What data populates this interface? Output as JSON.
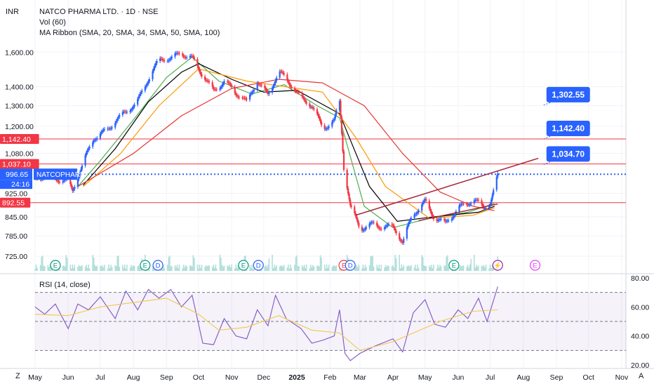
{
  "header": {
    "currency": "INR",
    "symbol_line": "NATCO PHARMA LTD. · 1D · NSE",
    "vol_line": "Vol (60)",
    "ma_line": "MA Ribbon (SMA, 20, SMA, 34, SMA, 50, SMA, 100)",
    "rsi_line": "RSI (14, close)"
  },
  "footer": {
    "left_corner": "Z",
    "right_corner": "A"
  },
  "colors": {
    "up": "#2962ff",
    "down": "#f23645",
    "ma20": "#4caf50",
    "ma34": "#000000",
    "ma50": "#ff9800",
    "ma100": "#e53935",
    "rsi": "#7e57c2",
    "rsi_ma": "#ffd54f",
    "hline": "#f23645",
    "trend": "#a52a3c",
    "accent": "#2962ff"
  },
  "chart_data": [
    {
      "type": "candlestick",
      "title": "NATCO PHARMA LTD. · 1D · NSE",
      "ylabel": "INR",
      "yscale": "log",
      "ylim": [
        700,
        1700
      ],
      "xlim": [
        "2024-05-01",
        "2025-11-05"
      ],
      "x_ticks": [
        {
          "date": "2024-05-01",
          "label": "May"
        },
        {
          "date": "2024-06-01",
          "label": "Jun"
        },
        {
          "date": "2024-07-01",
          "label": "Jul"
        },
        {
          "date": "2024-08-01",
          "label": "Aug"
        },
        {
          "date": "2024-09-01",
          "label": "Sep"
        },
        {
          "date": "2024-10-01",
          "label": "Oct"
        },
        {
          "date": "2024-11-01",
          "label": "Nov"
        },
        {
          "date": "2024-12-01",
          "label": "Dec"
        },
        {
          "date": "2025-01-01",
          "label": "2025"
        },
        {
          "date": "2025-02-01",
          "label": "Feb"
        },
        {
          "date": "2025-03-01",
          "label": "Mar"
        },
        {
          "date": "2025-04-01",
          "label": "Apr"
        },
        {
          "date": "2025-05-01",
          "label": "May"
        },
        {
          "date": "2025-06-01",
          "label": "Jun"
        },
        {
          "date": "2025-07-01",
          "label": "Jul"
        },
        {
          "date": "2025-08-01",
          "label": "Aug"
        },
        {
          "date": "2025-09-01",
          "label": "Sep"
        },
        {
          "date": "2025-10-01",
          "label": "Oct"
        },
        {
          "date": "2025-11-01",
          "label": "Nov"
        }
      ],
      "y_ticks": [
        "1,600.00",
        "1,400.00",
        "1,300.00",
        "1,200.00",
        "1,080.00",
        "925.00",
        "845.00",
        "785.00",
        "725.00"
      ],
      "price_series": [
        {
          "date": "2024-05-01",
          "close": 975
        },
        {
          "date": "2024-05-15",
          "close": 990
        },
        {
          "date": "2024-06-01",
          "close": 975
        },
        {
          "date": "2024-06-05",
          "close": 935
        },
        {
          "date": "2024-06-15",
          "close": 1030
        },
        {
          "date": "2024-06-25",
          "close": 1150
        },
        {
          "date": "2024-07-10",
          "close": 1200
        },
        {
          "date": "2024-07-25",
          "close": 1260
        },
        {
          "date": "2024-08-05",
          "close": 1330
        },
        {
          "date": "2024-08-15",
          "close": 1450
        },
        {
          "date": "2024-08-25",
          "close": 1540
        },
        {
          "date": "2024-09-05",
          "close": 1560
        },
        {
          "date": "2024-09-15",
          "close": 1610
        },
        {
          "date": "2024-09-25",
          "close": 1560
        },
        {
          "date": "2024-10-05",
          "close": 1450
        },
        {
          "date": "2024-10-15",
          "close": 1380
        },
        {
          "date": "2024-10-25",
          "close": 1440
        },
        {
          "date": "2024-11-05",
          "close": 1360
        },
        {
          "date": "2024-11-15",
          "close": 1310
        },
        {
          "date": "2024-11-25",
          "close": 1440
        },
        {
          "date": "2024-12-05",
          "close": 1360
        },
        {
          "date": "2024-12-15",
          "close": 1470
        },
        {
          "date": "2024-12-25",
          "close": 1420
        },
        {
          "date": "2025-01-05",
          "close": 1350
        },
        {
          "date": "2025-01-15",
          "close": 1300
        },
        {
          "date": "2025-01-25",
          "close": 1180
        },
        {
          "date": "2025-02-05",
          "close": 1230
        },
        {
          "date": "2025-02-10",
          "close": 1330
        },
        {
          "date": "2025-02-14",
          "close": 1030
        },
        {
          "date": "2025-02-20",
          "close": 880
        },
        {
          "date": "2025-03-01",
          "close": 800
        },
        {
          "date": "2025-03-15",
          "close": 825
        },
        {
          "date": "2025-04-01",
          "close": 810
        },
        {
          "date": "2025-04-10",
          "close": 760
        },
        {
          "date": "2025-04-20",
          "close": 860
        },
        {
          "date": "2025-05-01",
          "close": 900
        },
        {
          "date": "2025-05-10",
          "close": 835
        },
        {
          "date": "2025-05-20",
          "close": 820
        },
        {
          "date": "2025-06-01",
          "close": 880
        },
        {
          "date": "2025-06-15",
          "close": 900
        },
        {
          "date": "2025-06-25",
          "close": 870
        },
        {
          "date": "2025-07-01",
          "close": 895
        },
        {
          "date": "2025-07-08",
          "close": 996.65
        }
      ],
      "moving_averages": [
        {
          "name": "SMA 20",
          "color": "#4caf50",
          "points": [
            {
              "date": "2024-06-10",
              "value": 950
            },
            {
              "date": "2024-07-01",
              "value": 1050
            },
            {
              "date": "2024-08-01",
              "value": 1230
            },
            {
              "date": "2024-09-01",
              "value": 1450
            },
            {
              "date": "2024-09-25",
              "value": 1570
            },
            {
              "date": "2024-10-20",
              "value": 1430
            },
            {
              "date": "2024-11-20",
              "value": 1360
            },
            {
              "date": "2024-12-20",
              "value": 1410
            },
            {
              "date": "2025-01-20",
              "value": 1300
            },
            {
              "date": "2025-02-10",
              "value": 1240
            },
            {
              "date": "2025-03-05",
              "value": 880
            },
            {
              "date": "2025-04-01",
              "value": 810
            },
            {
              "date": "2025-05-05",
              "value": 840
            },
            {
              "date": "2025-06-10",
              "value": 860
            },
            {
              "date": "2025-07-05",
              "value": 890
            }
          ]
        },
        {
          "name": "SMA 34",
          "color": "#000000",
          "points": [
            {
              "date": "2024-06-15",
              "value": 955
            },
            {
              "date": "2024-07-15",
              "value": 1100
            },
            {
              "date": "2024-08-15",
              "value": 1320
            },
            {
              "date": "2024-09-15",
              "value": 1480
            },
            {
              "date": "2024-10-01",
              "value": 1530
            },
            {
              "date": "2024-11-01",
              "value": 1440
            },
            {
              "date": "2024-12-01",
              "value": 1370
            },
            {
              "date": "2025-01-01",
              "value": 1380
            },
            {
              "date": "2025-02-10",
              "value": 1260
            },
            {
              "date": "2025-03-10",
              "value": 950
            },
            {
              "date": "2025-04-05",
              "value": 830
            },
            {
              "date": "2025-05-10",
              "value": 845
            },
            {
              "date": "2025-06-20",
              "value": 860
            },
            {
              "date": "2025-07-05",
              "value": 880
            }
          ]
        },
        {
          "name": "SMA 50",
          "color": "#ff9800",
          "points": [
            {
              "date": "2024-06-15",
              "value": 950
            },
            {
              "date": "2024-07-20",
              "value": 1080
            },
            {
              "date": "2024-08-25",
              "value": 1300
            },
            {
              "date": "2024-10-01",
              "value": 1500
            },
            {
              "date": "2024-11-15",
              "value": 1430
            },
            {
              "date": "2024-12-20",
              "value": 1400
            },
            {
              "date": "2025-01-25",
              "value": 1370
            },
            {
              "date": "2025-02-25",
              "value": 1150
            },
            {
              "date": "2025-03-25",
              "value": 950
            },
            {
              "date": "2025-05-05",
              "value": 840
            },
            {
              "date": "2025-06-15",
              "value": 850
            },
            {
              "date": "2025-07-05",
              "value": 875
            }
          ]
        },
        {
          "name": "SMA 100",
          "color": "#e53935",
          "points": [
            {
              "date": "2024-06-10",
              "value": 950
            },
            {
              "date": "2024-08-01",
              "value": 1080
            },
            {
              "date": "2024-09-15",
              "value": 1250
            },
            {
              "date": "2024-11-01",
              "value": 1390
            },
            {
              "date": "2024-12-15",
              "value": 1440
            },
            {
              "date": "2025-01-25",
              "value": 1420
            },
            {
              "date": "2025-03-05",
              "value": 1300
            },
            {
              "date": "2025-04-10",
              "value": 1080
            },
            {
              "date": "2025-05-15",
              "value": 930
            },
            {
              "date": "2025-06-15",
              "value": 880
            },
            {
              "date": "2025-07-05",
              "value": 865
            }
          ]
        }
      ],
      "horizontal_levels": [
        {
          "value": 1142.4,
          "label": "1,142.40"
        },
        {
          "value": 1037.1,
          "label": "1,037.10"
        },
        {
          "value": 892.55,
          "label": "892.55"
        }
      ],
      "current_price": {
        "value": 996.65,
        "label": "996.65",
        "ticker": "NATCOPHARM",
        "countdown": "24:16"
      },
      "trendlines": [
        {
          "from": {
            "date": "2025-02-25",
            "value": 850
          },
          "to": {
            "date": "2025-08-15",
            "value": 1060
          }
        },
        {
          "from": {
            "date": "2025-04-25",
            "value": 832
          },
          "to": {
            "date": "2025-07-08",
            "value": 888
          }
        }
      ],
      "targets": [
        {
          "label": "1,302.55",
          "value": 1302.55
        },
        {
          "label": "1,142.40",
          "value": 1142.4
        },
        {
          "label": "1,034.70",
          "value": 1034.7
        }
      ],
      "events": [
        {
          "date": "2024-05-20",
          "label": "E",
          "color": "#089981"
        },
        {
          "date": "2024-08-12",
          "label": "E",
          "color": "#089981"
        },
        {
          "date": "2024-08-24",
          "label": "D",
          "color": "#2962ff"
        },
        {
          "date": "2024-11-12",
          "label": "E",
          "color": "#089981"
        },
        {
          "date": "2024-11-26",
          "label": "D",
          "color": "#2962ff"
        },
        {
          "date": "2025-02-14",
          "label": "E",
          "color": "#f23645"
        },
        {
          "date": "2025-02-20",
          "label": "D",
          "color": "#2962ff"
        },
        {
          "date": "2025-05-28",
          "label": "E",
          "color": "#089981"
        },
        {
          "date": "2025-07-08",
          "label": "⚡",
          "color": "#9c27b0"
        },
        {
          "date": "2025-08-12",
          "label": "E",
          "color": "#e040fb"
        }
      ]
    },
    {
      "type": "line",
      "title": "RSI (14, close)",
      "ylim": [
        20,
        80
      ],
      "y_ticks": [
        "80.00",
        "60.00",
        "40.00",
        "20.00"
      ],
      "bands": [
        70,
        50,
        30
      ],
      "series": [
        {
          "name": "RSI",
          "color": "#7e57c2",
          "points": [
            {
              "date": "2024-05-01",
              "value": 60
            },
            {
              "date": "2024-05-10",
              "value": 55
            },
            {
              "date": "2024-05-20",
              "value": 62
            },
            {
              "date": "2024-06-01",
              "value": 45
            },
            {
              "date": "2024-06-10",
              "value": 62
            },
            {
              "date": "2024-06-20",
              "value": 58
            },
            {
              "date": "2024-07-01",
              "value": 67
            },
            {
              "date": "2024-07-15",
              "value": 52
            },
            {
              "date": "2024-07-25",
              "value": 71
            },
            {
              "date": "2024-08-05",
              "value": 58
            },
            {
              "date": "2024-08-15",
              "value": 72
            },
            {
              "date": "2024-08-25",
              "value": 66
            },
            {
              "date": "2024-09-05",
              "value": 72
            },
            {
              "date": "2024-09-15",
              "value": 60
            },
            {
              "date": "2024-09-25",
              "value": 68
            },
            {
              "date": "2024-10-05",
              "value": 35
            },
            {
              "date": "2024-10-15",
              "value": 34
            },
            {
              "date": "2024-10-25",
              "value": 52
            },
            {
              "date": "2024-11-05",
              "value": 40
            },
            {
              "date": "2024-11-15",
              "value": 38
            },
            {
              "date": "2024-11-25",
              "value": 58
            },
            {
              "date": "2024-12-05",
              "value": 47
            },
            {
              "date": "2024-12-12",
              "value": 68
            },
            {
              "date": "2024-12-22",
              "value": 52
            },
            {
              "date": "2025-01-05",
              "value": 45
            },
            {
              "date": "2025-01-15",
              "value": 35
            },
            {
              "date": "2025-01-25",
              "value": 37
            },
            {
              "date": "2025-02-05",
              "value": 40
            },
            {
              "date": "2025-02-10",
              "value": 58
            },
            {
              "date": "2025-02-15",
              "value": 28
            },
            {
              "date": "2025-02-20",
              "value": 23
            },
            {
              "date": "2025-03-01",
              "value": 28
            },
            {
              "date": "2025-03-15",
              "value": 33
            },
            {
              "date": "2025-04-01",
              "value": 38
            },
            {
              "date": "2025-04-10",
              "value": 29
            },
            {
              "date": "2025-04-20",
              "value": 56
            },
            {
              "date": "2025-05-01",
              "value": 65
            },
            {
              "date": "2025-05-10",
              "value": 48
            },
            {
              "date": "2025-05-20",
              "value": 46
            },
            {
              "date": "2025-06-01",
              "value": 58
            },
            {
              "date": "2025-06-10",
              "value": 52
            },
            {
              "date": "2025-06-20",
              "value": 66
            },
            {
              "date": "2025-06-28",
              "value": 50
            },
            {
              "date": "2025-07-03",
              "value": 62
            },
            {
              "date": "2025-07-08",
              "value": 74
            }
          ]
        },
        {
          "name": "RSI MA",
          "color": "#f2c94c",
          "points": [
            {
              "date": "2024-05-01",
              "value": 55
            },
            {
              "date": "2024-06-01",
              "value": 54
            },
            {
              "date": "2024-07-01",
              "value": 60
            },
            {
              "date": "2024-08-01",
              "value": 63
            },
            {
              "date": "2024-09-01",
              "value": 66
            },
            {
              "date": "2024-10-01",
              "value": 55
            },
            {
              "date": "2024-10-20",
              "value": 44
            },
            {
              "date": "2024-11-15",
              "value": 46
            },
            {
              "date": "2024-12-15",
              "value": 54
            },
            {
              "date": "2025-01-15",
              "value": 44
            },
            {
              "date": "2025-02-10",
              "value": 42
            },
            {
              "date": "2025-03-01",
              "value": 30
            },
            {
              "date": "2025-04-01",
              "value": 36
            },
            {
              "date": "2025-04-20",
              "value": 42
            },
            {
              "date": "2025-05-15",
              "value": 50
            },
            {
              "date": "2025-06-15",
              "value": 57
            },
            {
              "date": "2025-07-08",
              "value": 58
            }
          ]
        }
      ]
    }
  ]
}
